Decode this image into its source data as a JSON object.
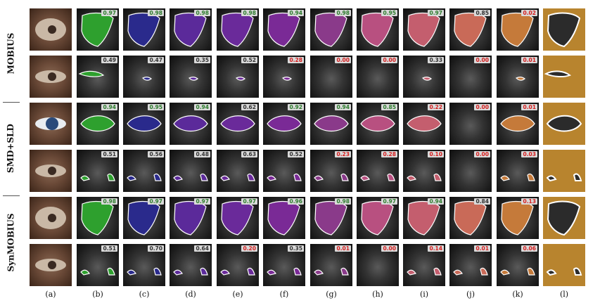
{
  "datasets": [
    "MOBIUS",
    "SMD+SLD",
    "SynMOBIUS"
  ],
  "column_labels": [
    "(a)",
    "(b)",
    "(c)",
    "(d)",
    "(e)",
    "(f)",
    "(g)",
    "(h)",
    "(i)",
    "(j)",
    "(k)",
    "(l)"
  ],
  "column_colors": [
    "",
    "#2ea02e",
    "#2a2a8c",
    "#5b2a9a",
    "#6a2a9a",
    "#7a2a96",
    "#8a3a8a",
    "#b85080",
    "#c45e6e",
    "#c96a58",
    "#c57a3a",
    "#b8842e"
  ],
  "score_colors": {
    "good": "#2e7d2e",
    "mid": "#333333",
    "bad": "#d62020"
  },
  "rows": [
    {
      "dataset": 0,
      "scene": "open-eye",
      "scores": [
        "0.97",
        "0.98",
        "0.98",
        "0.98",
        "0.94",
        "0.98",
        "0.95",
        "0.97",
        "0.85",
        "0.02"
      ],
      "level": [
        "good",
        "good",
        "good",
        "good",
        "good",
        "good",
        "good",
        "good",
        "mid",
        "bad"
      ]
    },
    {
      "dataset": 0,
      "scene": "closed-eye",
      "scores": [
        "0.49",
        "0.47",
        "0.35",
        "0.52",
        "0.28",
        "0.00",
        "0.00",
        "0.33",
        "0.00",
        "0.01"
      ],
      "level": [
        "mid",
        "mid",
        "mid",
        "mid",
        "bad",
        "bad",
        "bad",
        "mid",
        "bad",
        "bad"
      ]
    },
    {
      "dataset": 1,
      "scene": "iris-eye",
      "scores": [
        "0.94",
        "0.95",
        "0.94",
        "0.62",
        "0.92",
        "0.94",
        "0.85",
        "0.22",
        "0.00",
        "0.01"
      ],
      "level": [
        "good",
        "good",
        "good",
        "mid",
        "good",
        "good",
        "good",
        "bad",
        "bad",
        "bad"
      ]
    },
    {
      "dataset": 1,
      "scene": "dark-eye",
      "scores": [
        "0.51",
        "0.56",
        "0.48",
        "0.63",
        "0.52",
        "0.23",
        "0.28",
        "0.10",
        "0.00",
        "0.03"
      ],
      "level": [
        "mid",
        "mid",
        "mid",
        "mid",
        "mid",
        "bad",
        "bad",
        "bad",
        "bad",
        "bad"
      ]
    },
    {
      "dataset": 2,
      "scene": "open-eye",
      "scores": [
        "0.98",
        "0.97",
        "0.97",
        "0.97",
        "0.96",
        "0.98",
        "0.97",
        "0.94",
        "0.84",
        "0.13"
      ],
      "level": [
        "good",
        "good",
        "good",
        "good",
        "good",
        "good",
        "good",
        "good",
        "mid",
        "bad"
      ]
    },
    {
      "dataset": 2,
      "scene": "dark-eye",
      "scores": [
        "0.51",
        "0.70",
        "0.64",
        "0.20",
        "0.35",
        "0.01",
        "0.00",
        "0.14",
        "0.01",
        "0.06"
      ],
      "level": [
        "mid",
        "mid",
        "mid",
        "bad",
        "mid",
        "bad",
        "bad",
        "bad",
        "bad",
        "bad"
      ]
    }
  ]
}
